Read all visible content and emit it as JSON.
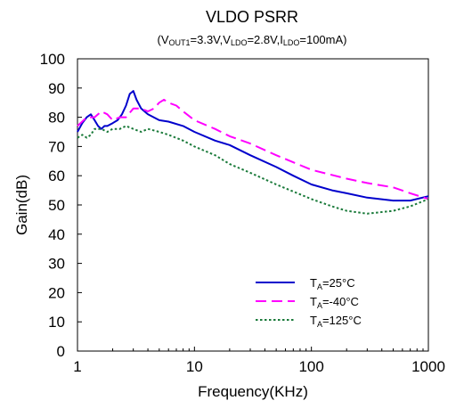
{
  "chart_data": {
    "type": "line",
    "title": "VLDO PSRR",
    "subtitle": {
      "prefix": "(V",
      "vout_sub": "OUT1",
      "vout_val": "=3.3V,",
      "vldo": "V",
      "vldo_sub": "LDO",
      "vldo_val": "=2.8V,",
      "ildo": "I",
      "ildo_sub": "LDO",
      "ildo_val": "=100mA)"
    },
    "xlabel": "Frequency(KHz)",
    "ylabel": "Gain(dB)",
    "x_scale": "log",
    "xlim": [
      1,
      1000
    ],
    "ylim": [
      0,
      100
    ],
    "x_ticks": [
      "1",
      "10",
      "100",
      "1000"
    ],
    "y_ticks": [
      "0",
      "10",
      "20",
      "30",
      "40",
      "50",
      "60",
      "70",
      "80",
      "90",
      "100"
    ],
    "grid": false,
    "legend_position": "lower-right",
    "series": [
      {
        "name": "TA=25°C",
        "label_main": "T",
        "label_sub": "A",
        "label_rest": "=25°C",
        "color": "#0000cc",
        "style": "solid",
        "x": [
          1,
          1.1,
          1.2,
          1.3,
          1.4,
          1.5,
          1.6,
          1.7,
          1.8,
          2,
          2.2,
          2.4,
          2.6,
          2.8,
          3,
          3.2,
          3.5,
          4,
          5,
          6,
          8,
          10,
          15,
          20,
          30,
          50,
          70,
          100,
          150,
          200,
          300,
          500,
          700,
          1000
        ],
        "y": [
          75,
          78,
          80,
          81,
          79,
          77,
          76,
          77,
          77,
          78,
          79,
          81,
          84,
          88,
          89,
          86,
          83,
          81,
          79,
          78.5,
          77,
          75,
          72,
          70.5,
          67,
          63,
          60,
          57,
          55,
          54,
          52.5,
          51.5,
          51.5,
          53
        ]
      },
      {
        "name": "TA=-40°C",
        "label_main": "T",
        "label_sub": "A",
        "label_rest": "=-40°C",
        "color": "#ff00ff",
        "style": "dashed",
        "x": [
          1,
          1.2,
          1.4,
          1.6,
          1.8,
          2,
          2.3,
          2.6,
          3,
          3.5,
          4,
          4.5,
          5,
          5.5,
          6,
          7,
          8,
          10,
          15,
          20,
          30,
          50,
          100,
          200,
          300,
          500,
          700,
          1000
        ],
        "y": [
          77,
          80,
          80,
          82,
          81,
          79,
          80,
          80,
          83,
          83,
          82,
          83,
          85,
          86,
          85,
          84,
          82,
          79,
          76,
          73.5,
          71,
          67,
          62,
          59,
          57.5,
          56,
          54,
          52
        ]
      },
      {
        "name": "TA=125°C",
        "label_main": "T",
        "label_sub": "A",
        "label_rest": "=125°C",
        "color": "#1a7a3a",
        "style": "dotted",
        "x": [
          1,
          1.1,
          1.2,
          1.3,
          1.4,
          1.5,
          1.6,
          1.8,
          2,
          2.3,
          2.6,
          3,
          3.5,
          4,
          5,
          6,
          8,
          10,
          15,
          20,
          30,
          50,
          100,
          150,
          200,
          300,
          500,
          700,
          1000
        ],
        "y": [
          73,
          74,
          73,
          74,
          76,
          76,
          76,
          75,
          76,
          76,
          77,
          76,
          75,
          76,
          75,
          74,
          72,
          70,
          67,
          64,
          61,
          57,
          52,
          49.5,
          48,
          47,
          48,
          49.5,
          52
        ]
      }
    ]
  }
}
